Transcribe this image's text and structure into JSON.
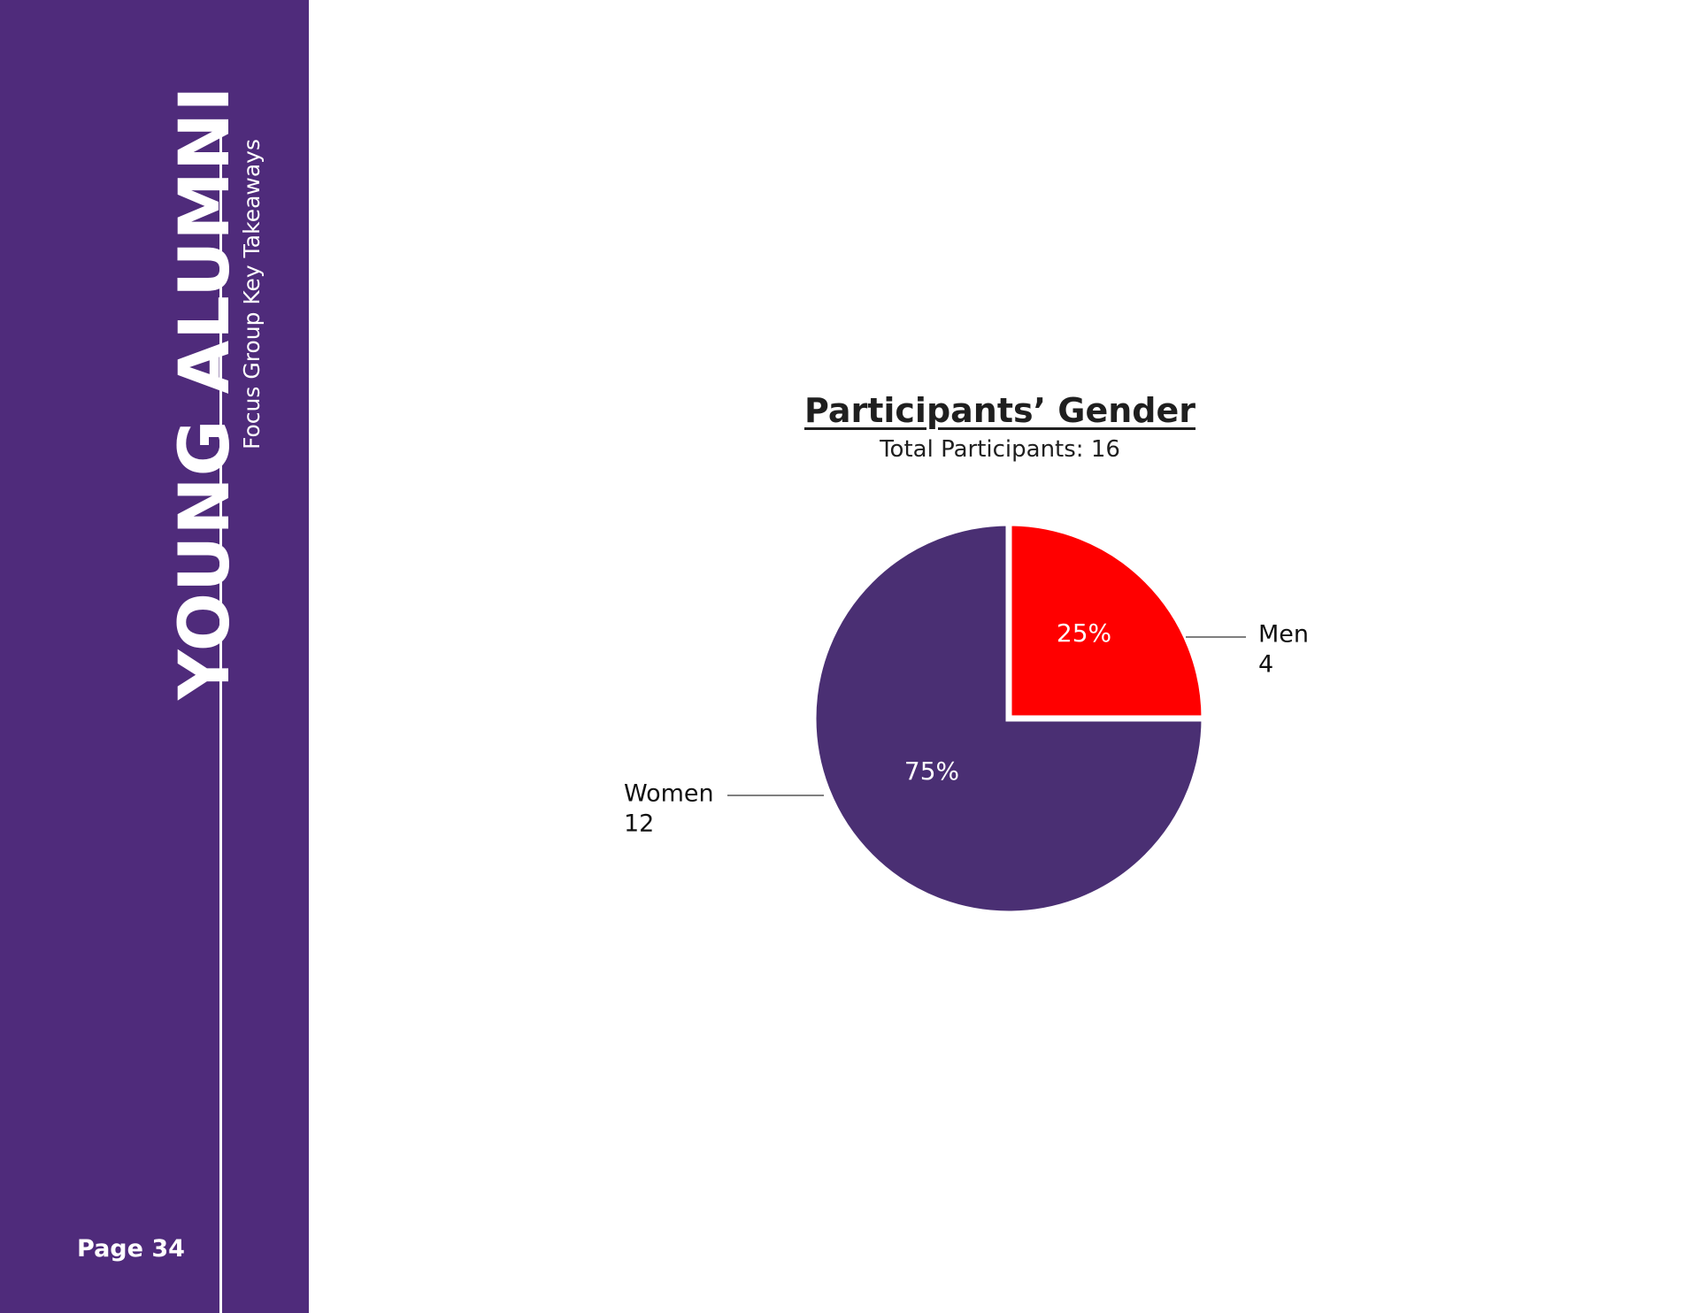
{
  "sidebar": {
    "title": "YOUNG ALUMNI",
    "subtitle": "Focus Group Key Takeaways",
    "page": "Page 34"
  },
  "colors": {
    "sidebar": "#4f2b7b",
    "women": "#4a2f73",
    "men": "#ff0000"
  },
  "chart_data": {
    "type": "pie",
    "title": "Participants’ Gender",
    "subtitle": "Total Participants: 16",
    "slices": [
      {
        "name": "Men",
        "value": 4,
        "percent": "25%",
        "color": "#ff0000"
      },
      {
        "name": "Women",
        "value": 12,
        "percent": "75%",
        "color": "#4a2f73"
      }
    ]
  }
}
